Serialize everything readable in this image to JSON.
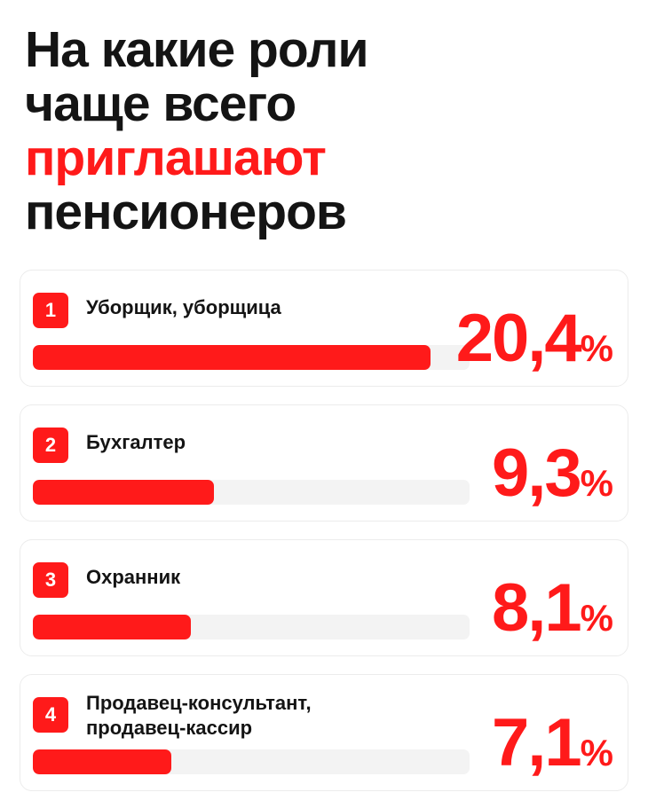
{
  "title": {
    "line1": "На какие роли",
    "line2": "чаще всего",
    "line3": "приглашают",
    "line4": "пенсионеров"
  },
  "colors": {
    "accent": "#ff1a1a",
    "text": "#141414",
    "track": "#f3f3f3"
  },
  "chart_data": {
    "type": "bar",
    "orientation": "horizontal",
    "value_unit": "%",
    "xlim": [
      0,
      22.4
    ],
    "categories": [
      "Уборщик, уборщица",
      "Бухгалтер",
      "Охранник",
      "Продавец-консультант, продавец-кассир"
    ],
    "values": [
      20.4,
      9.3,
      8.1,
      7.1
    ],
    "items": [
      {
        "rank": "1",
        "label_lines": [
          "Уборщик, уборщица"
        ],
        "value": 20.4,
        "value_text": "20,4",
        "sign": "%"
      },
      {
        "rank": "2",
        "label_lines": [
          "Бухгалтер"
        ],
        "value": 9.3,
        "value_text": "9,3",
        "sign": "%"
      },
      {
        "rank": "3",
        "label_lines": [
          "Охранник"
        ],
        "value": 8.1,
        "value_text": "8,1",
        "sign": "%"
      },
      {
        "rank": "4",
        "label_lines": [
          "Продавец-консультант,",
          "продавец-кассир"
        ],
        "value": 7.1,
        "value_text": "7,1",
        "sign": "%"
      }
    ]
  }
}
